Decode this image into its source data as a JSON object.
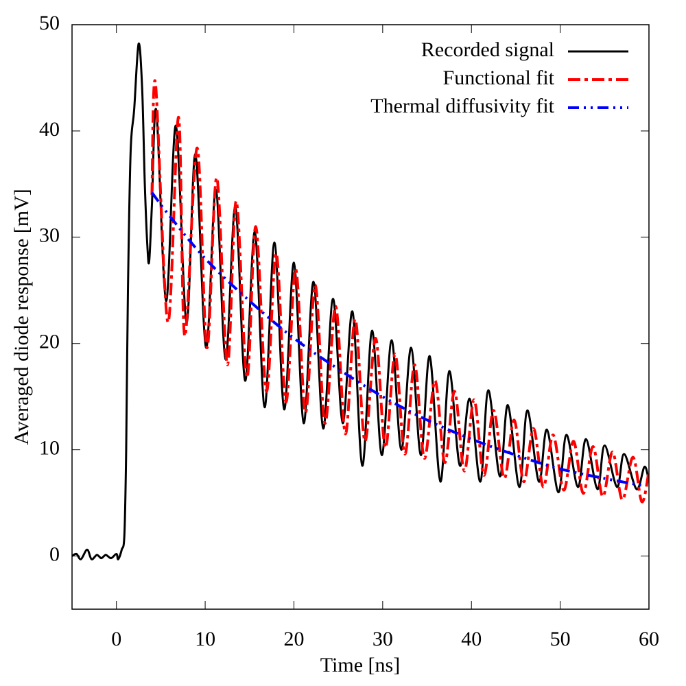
{
  "chart_data": {
    "type": "line",
    "x_label": "Time [ns]",
    "y_label": "Averaged diode response [mV]",
    "xlim": [
      -5,
      60
    ],
    "ylim": [
      -5,
      50
    ],
    "xticks": [
      0,
      10,
      20,
      30,
      40,
      50,
      60
    ],
    "yticks": [
      0,
      10,
      20,
      30,
      40,
      50
    ],
    "legend": "top-right",
    "grid": false,
    "series": [
      {
        "name": "Recorded signal",
        "color": "#000000",
        "line_style": "solid",
        "x": [
          -5,
          -4.5,
          -4,
          -3.3,
          -2.8,
          -2.2,
          -1.7,
          -1.2,
          -0.6,
          0,
          0.2,
          0.6,
          0.9,
          1.1,
          1.3,
          1.6,
          2.0,
          2.5,
          2.9,
          3.2,
          3.5,
          3.7,
          4.0,
          4.5,
          5.6,
          6.7,
          7.9,
          8.9,
          10.1,
          11.2,
          12.3,
          13.4,
          14.5,
          15.6,
          16.7,
          17.8,
          18.9,
          20.0,
          21.1,
          22.2,
          23.3,
          24.4,
          25.5,
          26.6,
          27.7,
          28.8,
          29.9,
          31.0,
          32.1,
          33.2,
          34.3,
          35.3,
          36.5,
          37.5,
          38.7,
          39.8,
          41.0,
          41.9,
          43.2,
          44.1,
          45.4,
          46.3,
          47.6,
          48.5,
          49.8,
          50.7,
          52.0,
          52.9,
          54.2,
          55.0,
          56.4,
          57.2,
          58.6,
          59.5,
          60
        ],
        "values": [
          0,
          0.2,
          -0.3,
          0.6,
          -0.3,
          0.1,
          -0.2,
          0.1,
          -0.2,
          0.2,
          -0.3,
          0.6,
          2,
          10,
          25,
          38,
          42,
          48.2,
          44,
          35,
          29,
          27.8,
          33,
          41.9,
          24,
          40.5,
          22,
          37.8,
          19.6,
          34.5,
          18.5,
          32.9,
          16.5,
          30.5,
          14,
          29.5,
          13.8,
          27.6,
          12.5,
          25.8,
          12,
          24.2,
          12.5,
          23,
          8.5,
          21.2,
          9.5,
          20.3,
          10,
          19.6,
          9.5,
          18.8,
          7,
          17.4,
          8.5,
          14.8,
          7,
          15.6,
          7.5,
          14.2,
          6.5,
          13.7,
          7,
          11.9,
          6,
          11.4,
          6.5,
          11,
          6.3,
          10.4,
          6.5,
          9.6,
          6.3,
          8.4,
          7
        ]
      },
      {
        "name": "Functional fit",
        "color": "#ff0000",
        "line_style": "dash-dot",
        "x": [
          4.0,
          4.4,
          5.8,
          7.0,
          7.7,
          9.1,
          10.2,
          11.3,
          12.5,
          13.5,
          14.7,
          15.7,
          16.9,
          18.0,
          19.1,
          20.2,
          21.3,
          22.4,
          23.5,
          24.7,
          25.8,
          26.9,
          28.0,
          29.2,
          30.3,
          31.4,
          32.5,
          33.6,
          34.7,
          35.9,
          37.0,
          38.1,
          39.2,
          40.3,
          41.4,
          42.5,
          43.7,
          44.8,
          45.9,
          47.0,
          48.1,
          49.2,
          50.4,
          51.5,
          52.6,
          53.7,
          54.8,
          55.9,
          57.0,
          58.2,
          59.2,
          60
        ],
        "values": [
          34,
          44.5,
          22,
          41.3,
          20.7,
          38.4,
          19.6,
          35.6,
          18,
          33.4,
          16.8,
          31,
          15.5,
          28.5,
          14.5,
          27,
          13.5,
          25.5,
          12.5,
          23.5,
          11.5,
          22.3,
          10.8,
          20.5,
          10.2,
          19,
          9.6,
          18,
          9.2,
          16.5,
          8.8,
          15.5,
          8,
          14.7,
          7.6,
          13.7,
          7.3,
          12.8,
          7,
          12,
          6.5,
          11.4,
          6.2,
          10.8,
          5.9,
          10.3,
          5.6,
          9.8,
          5.3,
          9.3,
          5.1,
          8
        ]
      },
      {
        "name": "Thermal diffusivity fit",
        "color": "#0000ff",
        "line_style": "dash-dot-dot",
        "x": [
          4,
          6,
          10,
          15,
          20,
          25,
          30,
          35,
          40,
          45,
          50,
          55,
          59.5
        ],
        "values": [
          34.2,
          32,
          28,
          24,
          20.5,
          17.6,
          15,
          12.8,
          11,
          9.5,
          8.2,
          7.3,
          6.6
        ]
      }
    ]
  }
}
